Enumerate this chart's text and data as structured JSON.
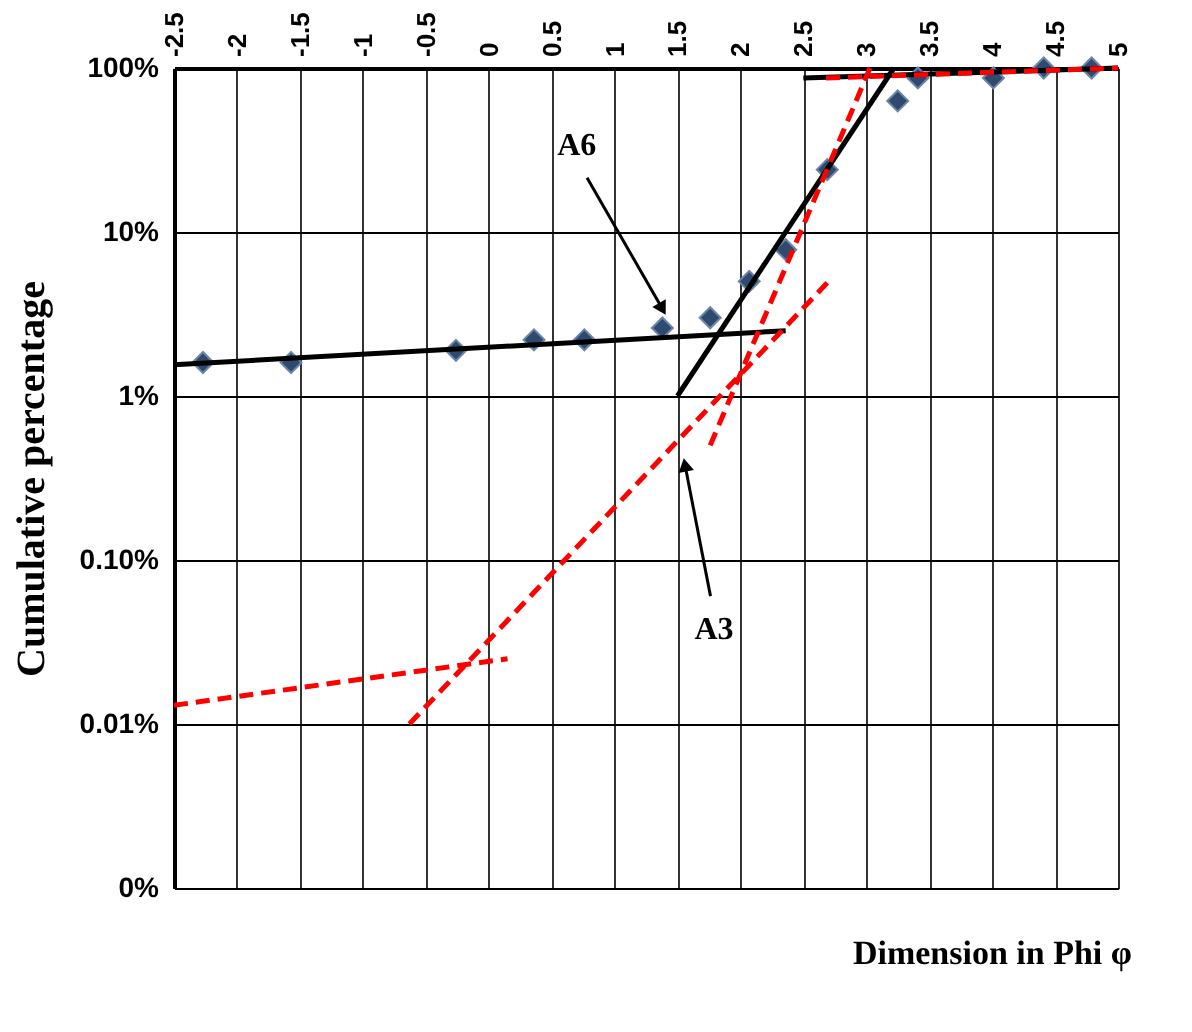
{
  "chart_data": {
    "type": "scatter",
    "xlabel": "Dimension in Phi φ",
    "ylabel": "Cumulative percentage",
    "xlim": [
      -2.5,
      5
    ],
    "xticks": [
      -2.5,
      -2,
      -1.5,
      -1,
      -0.5,
      0,
      0.5,
      1,
      1.5,
      2,
      2.5,
      3,
      3.5,
      4,
      4.5,
      5
    ],
    "ylim": [
      0.001,
      100
    ],
    "yticks": [
      {
        "value": 0.001,
        "label": "0%"
      },
      {
        "value": 0.01,
        "label": "0.01%"
      },
      {
        "value": 0.1,
        "label": "0.10%"
      },
      {
        "value": 1,
        "label": "1%"
      },
      {
        "value": 10,
        "label": "10%"
      },
      {
        "value": 100,
        "label": "100%"
      }
    ],
    "log": "y",
    "grid": true,
    "series": [
      {
        "marker": "diamond",
        "color": "#2e4a6e",
        "x": [
          -2.27,
          -1.57,
          -0.26,
          0.36,
          0.76,
          1.38,
          1.76,
          2.07,
          2.36,
          2.69,
          3.25,
          3.41,
          4.01,
          4.41,
          4.79
        ],
        "values": [
          1.6,
          1.6,
          1.9,
          2.2,
          2.2,
          2.6,
          3.0,
          5.0,
          7.8,
          24,
          63,
          87,
          87,
          100,
          100
        ]
      },
      {
        "type": "line",
        "line_style": "solid",
        "color": "#000000",
        "x": [
          -2.5,
          2.36
        ],
        "values": [
          1.55,
          2.5
        ]
      },
      {
        "type": "line",
        "line_style": "solid",
        "color": "#000000",
        "x": [
          1.5,
          3.22
        ],
        "values": [
          1,
          100
        ]
      },
      {
        "type": "line",
        "line_style": "solid",
        "color": "#000000",
        "x": [
          2.5,
          5
        ],
        "values": [
          87,
          100
        ]
      },
      {
        "type": "line",
        "line_style": "dashed",
        "color": "#ff0000",
        "x": [
          -2.5,
          0.15
        ],
        "values": [
          0.013,
          0.025
        ]
      },
      {
        "type": "line",
        "line_style": "dashed",
        "color": "#ff0000",
        "x": [
          -0.63,
          2.69
        ],
        "values": [
          0.01,
          4.9
        ]
      },
      {
        "type": "line",
        "line_style": "dashed",
        "color": "#ff0000",
        "x": [
          1.76,
          3.03
        ],
        "values": [
          0.5,
          100
        ]
      },
      {
        "type": "line",
        "line_style": "dashed",
        "color": "#ff0000",
        "x": [
          2.68,
          5
        ],
        "values": [
          87,
          100
        ]
      }
    ],
    "annotations": [
      {
        "text": "A6",
        "x": 1.38,
        "y": 3.4
      },
      {
        "text": "A3",
        "x": 1.56,
        "y": 0.38
      }
    ]
  }
}
